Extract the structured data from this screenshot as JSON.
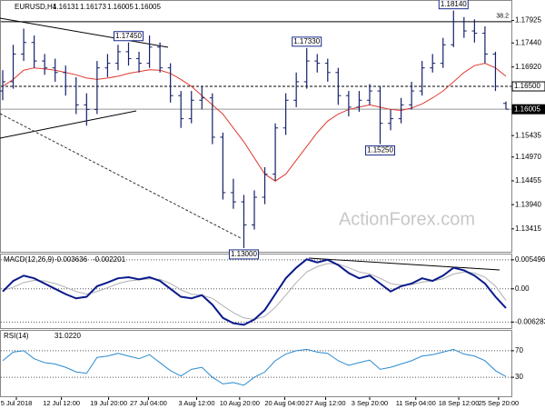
{
  "chart_data": [
    {
      "type": "ohlc",
      "title": "EURUSD,H4",
      "quote": [
        1.16131,
        1.16173,
        1.16005,
        1.16005
      ],
      "watermark": "ActionForex.com",
      "open": [
        1.164,
        1.166,
        1.172,
        1.1745,
        1.1705,
        1.169,
        1.168,
        1.165,
        1.161,
        1.16,
        1.169,
        1.17,
        1.1725,
        1.171,
        1.17,
        1.1735,
        1.169,
        1.163,
        1.158,
        1.162,
        1.1625,
        1.154,
        1.142,
        1.14,
        1.135,
        1.141,
        1.146,
        1.156,
        1.162,
        1.166,
        1.1705,
        1.17,
        1.168,
        1.163,
        1.1605,
        1.162,
        1.164,
        1.157,
        1.158,
        1.161,
        1.164,
        1.169,
        1.17,
        1.174,
        1.179,
        1.177,
        1.1765,
        1.172,
        1.16131
      ],
      "high": [
        1.1685,
        1.174,
        1.1775,
        1.176,
        1.172,
        1.171,
        1.1695,
        1.167,
        1.1635,
        1.1705,
        1.172,
        1.174,
        1.1745,
        1.1725,
        1.176,
        1.1745,
        1.17,
        1.164,
        1.164,
        1.165,
        1.1635,
        1.155,
        1.145,
        1.1415,
        1.1425,
        1.1475,
        1.157,
        1.1635,
        1.168,
        1.1733,
        1.172,
        1.171,
        1.169,
        1.164,
        1.164,
        1.1655,
        1.165,
        1.16,
        1.1625,
        1.166,
        1.1705,
        1.172,
        1.1755,
        1.1814,
        1.18,
        1.1795,
        1.178,
        1.1725,
        1.16173
      ],
      "low": [
        1.162,
        1.1645,
        1.1705,
        1.169,
        1.1675,
        1.166,
        1.163,
        1.159,
        1.1565,
        1.159,
        1.167,
        1.1685,
        1.1695,
        1.168,
        1.169,
        1.168,
        1.1615,
        1.156,
        1.157,
        1.16,
        1.1525,
        1.1405,
        1.1385,
        1.13,
        1.134,
        1.1395,
        1.1445,
        1.1545,
        1.1605,
        1.1645,
        1.168,
        1.166,
        1.161,
        1.1585,
        1.1595,
        1.161,
        1.1525,
        1.1555,
        1.157,
        1.16,
        1.163,
        1.168,
        1.169,
        1.1735,
        1.1755,
        1.1745,
        1.17,
        1.164,
        1.16005
      ],
      "close": [
        1.166,
        1.172,
        1.1745,
        1.1705,
        1.169,
        1.168,
        1.165,
        1.161,
        1.16,
        1.169,
        1.17,
        1.1725,
        1.171,
        1.17,
        1.1735,
        1.169,
        1.163,
        1.158,
        1.162,
        1.1625,
        1.154,
        1.142,
        1.14,
        1.135,
        1.141,
        1.146,
        1.156,
        1.162,
        1.166,
        1.1705,
        1.17,
        1.168,
        1.163,
        1.1605,
        1.162,
        1.164,
        1.157,
        1.158,
        1.161,
        1.164,
        1.169,
        1.17,
        1.174,
        1.179,
        1.177,
        1.1765,
        1.172,
        1.165,
        1.16005
      ],
      "color": "#14206a",
      "ma": {
        "color": "#e03a30",
        "values": [
          1.165,
          1.1665,
          1.1685,
          1.169,
          1.1688,
          1.1685,
          1.168,
          1.1675,
          1.1668,
          1.1665,
          1.1668,
          1.1672,
          1.1678,
          1.1682,
          1.1686,
          1.1685,
          1.1678,
          1.1665,
          1.165,
          1.163,
          1.161,
          1.159,
          1.156,
          1.153,
          1.1495,
          1.146,
          1.1445,
          1.146,
          1.149,
          1.152,
          1.155,
          1.1575,
          1.159,
          1.16,
          1.1605,
          1.161,
          1.1605,
          1.16,
          1.1598,
          1.1603,
          1.1612,
          1.1625,
          1.164,
          1.166,
          1.168,
          1.1695,
          1.17,
          1.169,
          1.1672
        ]
      },
      "ylim": [
        1.129,
        1.1835
      ],
      "yticks": [
        {
          "value": 1.17925,
          "label": "1.17925"
        },
        {
          "value": 1.1744,
          "label": "1.17440"
        },
        {
          "value": 1.1692,
          "label": "1.16920"
        },
        {
          "value": 1.15435,
          "label": "1.15435"
        },
        {
          "value": 1.1497,
          "label": "1.14970"
        },
        {
          "value": 1.14455,
          "label": "1.14455"
        },
        {
          "value": 1.1394,
          "label": "1.13940"
        },
        {
          "value": 1.13415,
          "label": "1.13415"
        }
      ],
      "levels": [
        {
          "value": 1.179,
          "label": "38.2",
          "style": "solid"
        },
        {
          "value": 1.165,
          "label": "1.16500",
          "style": "dashed"
        },
        {
          "value": 1.16005,
          "label": "1.16005",
          "style": "current"
        }
      ],
      "annotations": [
        {
          "index": 12,
          "value": 1.1745,
          "label": "1.17450",
          "position": "above"
        },
        {
          "index": 29,
          "value": 1.1733,
          "label": "1.17330",
          "position": "above"
        },
        {
          "index": 43,
          "value": 1.1814,
          "label": "1.18140",
          "position": "above"
        },
        {
          "index": 36,
          "value": 1.1525,
          "label": "1.15250",
          "position": "below"
        },
        {
          "index": 23,
          "value": 1.13,
          "label": "1.13000",
          "position": "below"
        }
      ],
      "xticks": [
        {
          "value": 1.3,
          "label": "5 Jul 2018"
        },
        {
          "value": 5.6,
          "label": "12 Jul 12:00"
        },
        {
          "value": 10.1,
          "label": "19 Jul 20:00"
        },
        {
          "value": 13.9,
          "label": "27 Jul 04:00"
        },
        {
          "value": 18.5,
          "label": "3 Aug 12:00"
        },
        {
          "value": 22.6,
          "label": "10 Aug 20:00"
        },
        {
          "value": 26.9,
          "label": "20 Aug 04:00"
        },
        {
          "value": 30.8,
          "label": "27 Aug 12:00"
        },
        {
          "value": 35,
          "label": "3 Sep 20:00"
        },
        {
          "value": 39.4,
          "label": "11 Sep 04:00"
        },
        {
          "value": 43.5,
          "label": "18 Sep 12:00"
        },
        {
          "value": 47.3,
          "label": "25 Sep 20:00"
        }
      ]
    },
    {
      "type": "line",
      "title": "MACD(12,26,9)",
      "readout": [
        -0.003636,
        -0.002201
      ],
      "ylim": [
        -0.0076,
        0.0065
      ],
      "yticks": [
        0.005496,
        {
          "value": 0,
          "label": "0.00"
        },
        -0.006283
      ],
      "series": [
        {
          "color": "#0a1a8c",
          "values": [
            -0.0005,
            0.0015,
            0.0025,
            0.002,
            0.001,
            0.0,
            -0.001,
            -0.0018,
            -0.0015,
            0.0005,
            0.0012,
            0.002,
            0.0022,
            0.0018,
            0.0022,
            0.0015,
            0.0,
            -0.0015,
            -0.0018,
            -0.0012,
            -0.003,
            -0.0055,
            -0.0065,
            -0.0068,
            -0.0058,
            -0.004,
            -0.001,
            0.002,
            0.004,
            0.0056,
            0.005,
            0.0055,
            0.0045,
            0.003,
            0.002,
            0.0025,
            0.001,
            -0.0005,
            0.0005,
            0.001,
            0.002,
            0.0015,
            0.0025,
            0.004,
            0.0035,
            0.0025,
            0.001,
            -0.0015,
            -0.003636
          ]
        },
        {
          "color": "#b0b0b0",
          "values": [
            -0.0003,
            0.0003,
            0.0012,
            0.0016,
            0.0015,
            0.001,
            0.0003,
            -0.0005,
            -0.001,
            -0.0005,
            0.0002,
            0.001,
            0.0015,
            0.0017,
            0.0019,
            0.0018,
            0.001,
            -0.0002,
            -0.001,
            -0.0012,
            -0.0018,
            -0.0032,
            -0.0045,
            -0.0055,
            -0.0058,
            -0.0052,
            -0.0035,
            -0.0012,
            0.0012,
            0.0032,
            0.0042,
            0.0048,
            0.0047,
            0.004,
            0.0032,
            0.0028,
            0.002,
            0.001,
            0.0007,
            0.0008,
            0.0013,
            0.0015,
            0.0019,
            0.0028,
            0.0032,
            0.003,
            0.0022,
            0.0005,
            -0.002201
          ]
        }
      ]
    },
    {
      "type": "line",
      "title": "RSI(14)",
      "readout": [
        {
          "value": 31.022,
          "label": "31.0220"
        }
      ],
      "ylim": [
        0,
        100
      ],
      "yticks": [
        30,
        70
      ],
      "series": [
        {
          "color": "#2a8ad0",
          "values": [
            55,
            68,
            70,
            58,
            52,
            50,
            45,
            38,
            36,
            60,
            62,
            66,
            62,
            58,
            64,
            52,
            40,
            32,
            42,
            45,
            30,
            20,
            22,
            18,
            30,
            38,
            55,
            65,
            70,
            72,
            68,
            66,
            55,
            48,
            52,
            56,
            42,
            45,
            50,
            55,
            62,
            64,
            68,
            72,
            65,
            62,
            55,
            40,
            31.022
          ]
        }
      ]
    }
  ]
}
